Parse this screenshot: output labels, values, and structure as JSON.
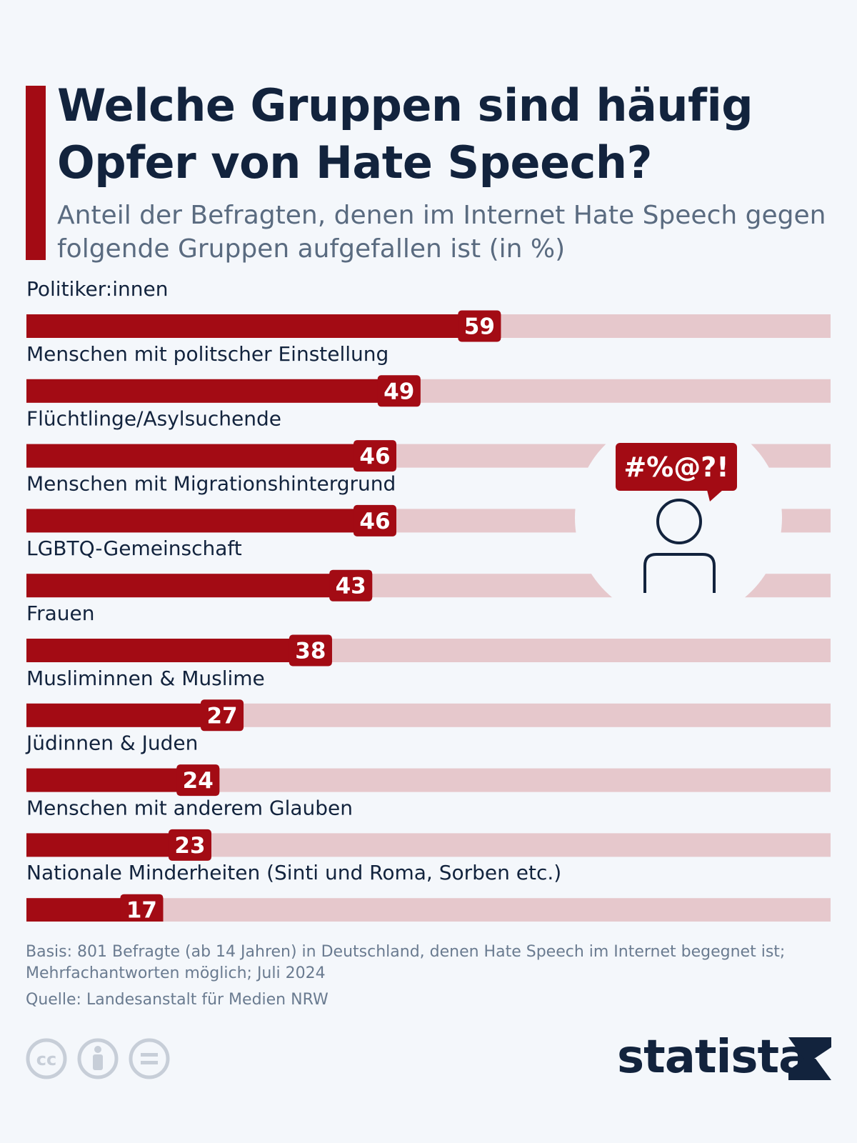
{
  "header": {
    "title": "Welche Gruppen sind häufig Opfer von Hate Speech?",
    "subtitle": "Anteil der Befragten, denen im Internet Hate Speech gegen folgende Gruppen aufgefallen ist (in %)"
  },
  "chart_data": {
    "type": "bar",
    "orientation": "horizontal",
    "xlim": [
      0,
      100
    ],
    "categories": [
      "Politiker:innen",
      "Menschen mit politscher Einstellung",
      "Flüchtlinge/Asylsuchende",
      "Menschen mit Migrationshintergrund",
      "LGBTQ-Gemeinschaft",
      "Frauen",
      "Musliminnen & Muslime",
      "Jüdinnen & Juden",
      "Menschen mit anderem Glauben",
      "Nationale Minderheiten (Sinti und Roma, Sorben etc.)"
    ],
    "values": [
      59,
      49,
      46,
      46,
      43,
      38,
      27,
      24,
      23,
      17
    ],
    "bar_color": "#a30b14",
    "track_color": "#e6c8cc",
    "grid": false
  },
  "illustration": {
    "speech_bubble_text": "#%@?!",
    "icon": "person-icon"
  },
  "footer": {
    "basis_line1": "Basis: 801 Befragte (ab 14 Jahren) in Deutschland, denen Hate Speech im Internet begegnet ist;",
    "basis_line2": "Mehrfachantworten möglich; Juli 2024",
    "source": "Quelle: Landesanstalt für Medien NRW"
  },
  "license_icons": [
    "cc-icon",
    "attribution-icon",
    "no-derivatives-icon"
  ],
  "brand": {
    "name": "statista",
    "color": "#12233d"
  }
}
